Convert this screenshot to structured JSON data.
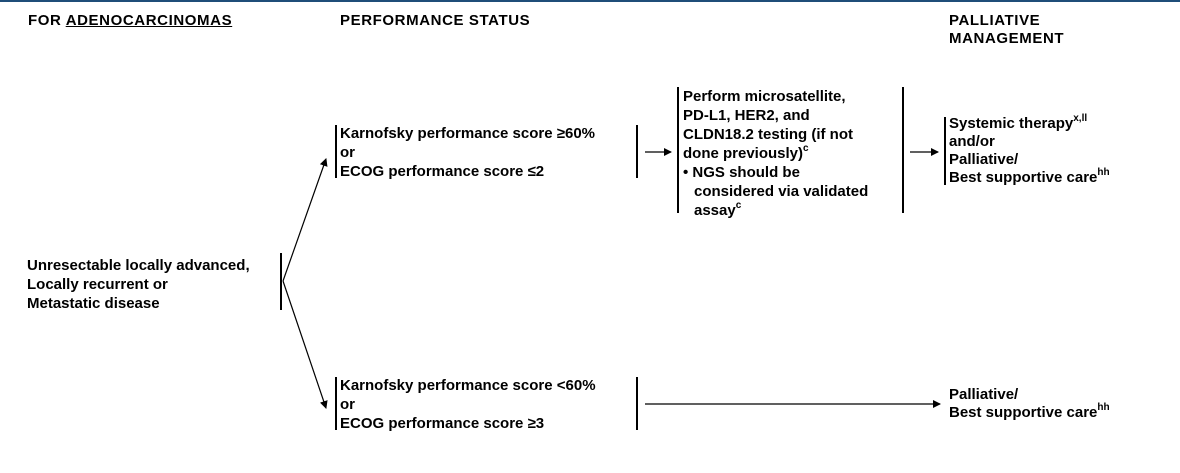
{
  "headers": {
    "col1_prefix": "FOR ",
    "col1_underlined": "ADENOCARCINOMAS",
    "col2": "PERFORMANCE STATUS",
    "col4_line1": "PALLIATIVE",
    "col4_line2": "MANAGEMENT"
  },
  "start_node": {
    "line1": "Unresectable locally advanced,",
    "line2": "Locally recurrent or",
    "line3": "Metastatic disease"
  },
  "upper_status": {
    "line1": "Karnofsky performance score ≥60%",
    "line2": "or",
    "line3": "ECOG performance score ≤2"
  },
  "testing": {
    "line1": "Perform microsatellite,",
    "line2": "PD-L1, HER2, and",
    "line3": "CLDN18.2 testing (if not",
    "line4": "done previously)",
    "line4_sup": "c",
    "bullet_line1": "• NGS should be",
    "bullet_line2": "considered via validated",
    "bullet_line3": "assay",
    "bullet_sup": "c"
  },
  "upper_management": {
    "line1": "Systemic therapy",
    "line1_sup": "x,ll",
    "line2": "and/or",
    "line3": "Palliative/",
    "line4": "Best supportive care",
    "line4_sup": "hh"
  },
  "lower_status": {
    "line1": "Karnofsky performance score <60%",
    "line2": "or",
    "line3": "ECOG performance score ≥3"
  },
  "lower_management": {
    "line1": "Palliative/",
    "line2": "Best supportive care",
    "line2_sup": "hh"
  }
}
